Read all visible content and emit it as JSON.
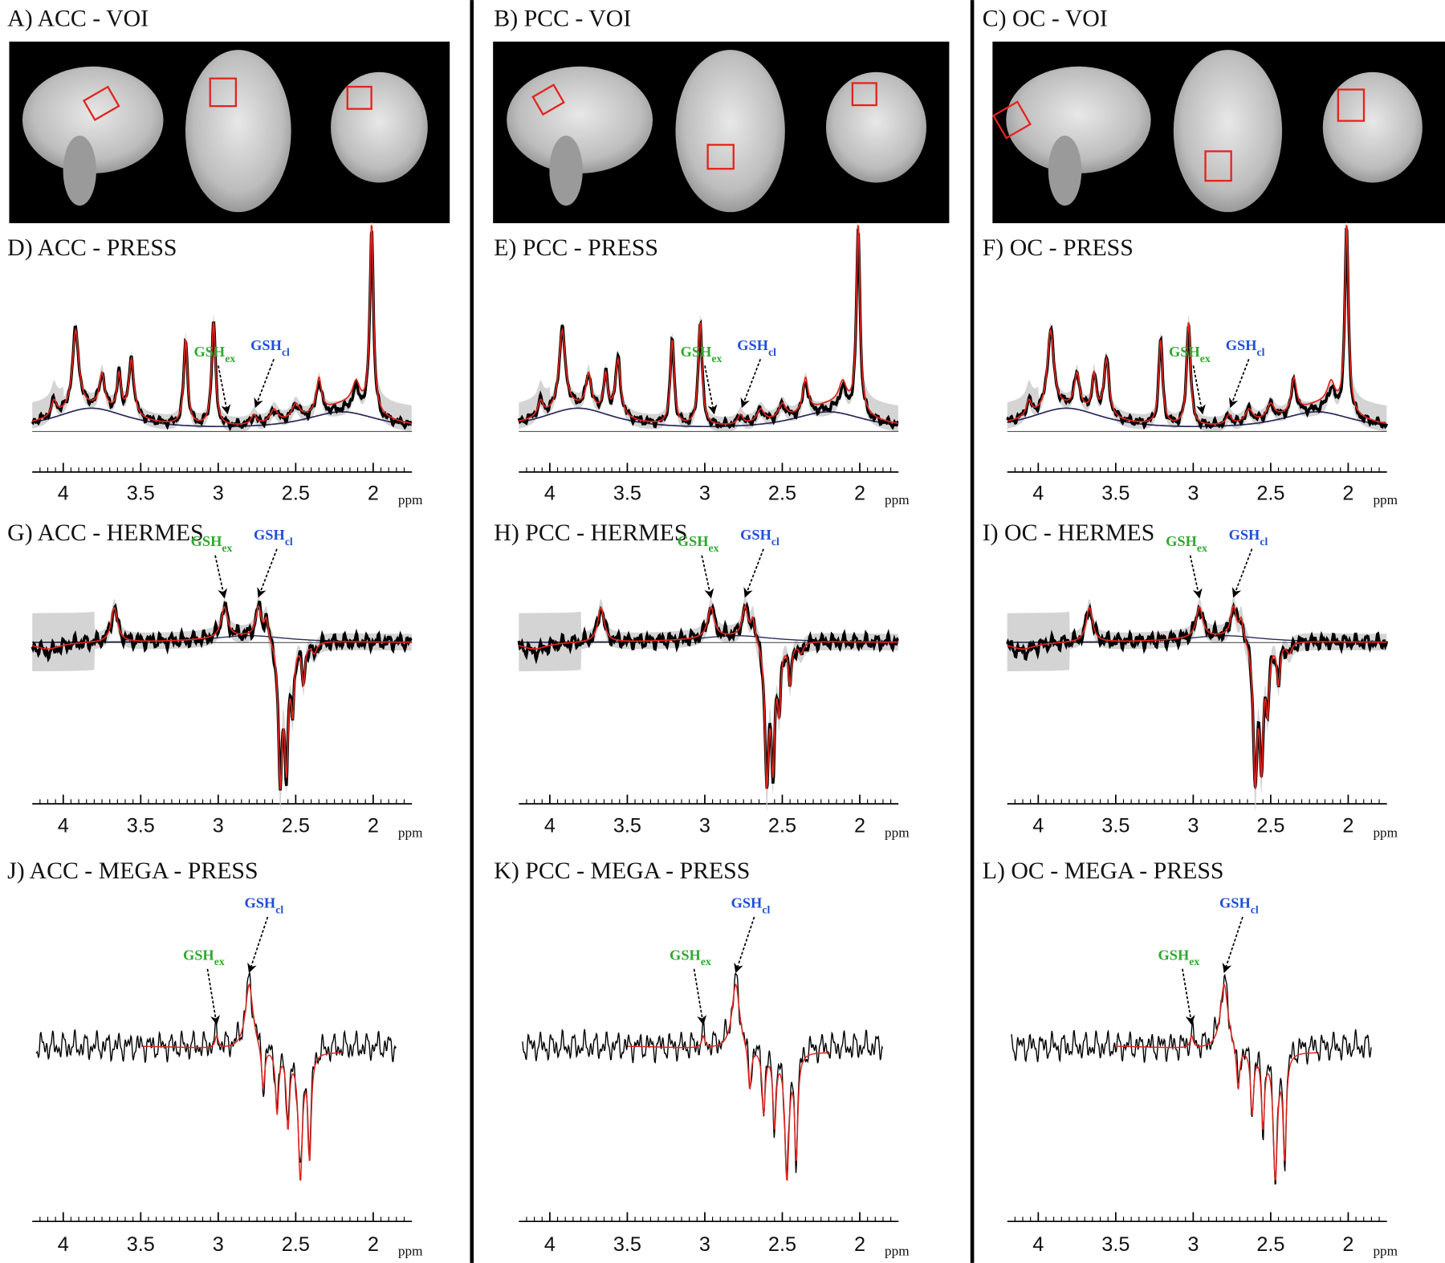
{
  "columns": [
    {
      "voi": {
        "title": "A) ACC - VOI"
      },
      "press": {
        "title": "D) ACC - PRESS",
        "axis": {
          "xlim": [
            4.2,
            1.75
          ],
          "xticks": [
            4,
            3.5,
            3,
            2.5,
            2
          ],
          "xlabel": "ppm"
        },
        "gsh_ex": {
          "text": "GSH",
          "sub": "ex"
        },
        "gsh_cl": {
          "text": "GSH",
          "sub": "cl"
        }
      },
      "hermes": {
        "title": "G) ACC - HERMES",
        "axis": {
          "xlim": [
            4.2,
            1.75
          ],
          "xticks": [
            4,
            3.5,
            3,
            2.5,
            2
          ],
          "xlabel": "ppm"
        },
        "gsh_ex": {
          "text": "GSH",
          "sub": "ex"
        },
        "gsh_cl": {
          "text": "GSH",
          "sub": "cl"
        }
      },
      "mega": {
        "title": "J) ACC - MEGA - PRESS",
        "axis": {
          "xlim": [
            4.2,
            1.75
          ],
          "xticks": [
            4,
            3.5,
            3,
            2.5,
            2
          ],
          "xlabel": "ppm"
        },
        "gsh_ex": {
          "text": "GSH",
          "sub": "ex"
        },
        "gsh_cl": {
          "text": "GSH",
          "sub": "cl"
        }
      }
    },
    {
      "voi": {
        "title": "B) PCC - VOI"
      },
      "press": {
        "title": "E) PCC - PRESS",
        "axis": {
          "xlim": [
            4.2,
            1.75
          ],
          "xticks": [
            4,
            3.5,
            3,
            2.5,
            2
          ],
          "xlabel": "ppm"
        },
        "gsh_ex": {
          "text": "GSH",
          "sub": "ex"
        },
        "gsh_cl": {
          "text": "GSH",
          "sub": "cl"
        }
      },
      "hermes": {
        "title": "H) PCC - HERMES",
        "axis": {
          "xlim": [
            4.2,
            1.75
          ],
          "xticks": [
            4,
            3.5,
            3,
            2.5,
            2
          ],
          "xlabel": "ppm"
        },
        "gsh_ex": {
          "text": "GSH",
          "sub": "ex"
        },
        "gsh_cl": {
          "text": "GSH",
          "sub": "cl"
        }
      },
      "mega": {
        "title": "K) PCC - MEGA - PRESS",
        "axis": {
          "xlim": [
            4.2,
            1.75
          ],
          "xticks": [
            4,
            3.5,
            3,
            2.5,
            2
          ],
          "xlabel": "ppm"
        },
        "gsh_ex": {
          "text": "GSH",
          "sub": "ex"
        },
        "gsh_cl": {
          "text": "GSH",
          "sub": "cl"
        }
      }
    },
    {
      "voi": {
        "title": "C) OC - VOI"
      },
      "press": {
        "title": "F) OC - PRESS",
        "axis": {
          "xlim": [
            4.2,
            1.75
          ],
          "xticks": [
            4,
            3.5,
            3,
            2.5,
            2
          ],
          "xlabel": "ppm"
        },
        "gsh_ex": {
          "text": "GSH",
          "sub": "ex"
        },
        "gsh_cl": {
          "text": "GSH",
          "sub": "cl"
        }
      },
      "hermes": {
        "title": "I) OC - HERMES",
        "axis": {
          "xlim": [
            4.2,
            1.75
          ],
          "xticks": [
            4,
            3.5,
            3,
            2.5,
            2
          ],
          "xlabel": "ppm"
        },
        "gsh_ex": {
          "text": "GSH",
          "sub": "ex"
        },
        "gsh_cl": {
          "text": "GSH",
          "sub": "cl"
        }
      },
      "mega": {
        "title": "L) OC - MEGA - PRESS",
        "axis": {
          "xlim": [
            4.2,
            1.75
          ],
          "xticks": [
            4,
            3.5,
            3,
            2.5,
            2
          ],
          "xlabel": "ppm"
        },
        "gsh_ex": {
          "text": "GSH",
          "sub": "ex"
        },
        "gsh_cl": {
          "text": "GSH",
          "sub": "cl"
        }
      }
    }
  ]
}
